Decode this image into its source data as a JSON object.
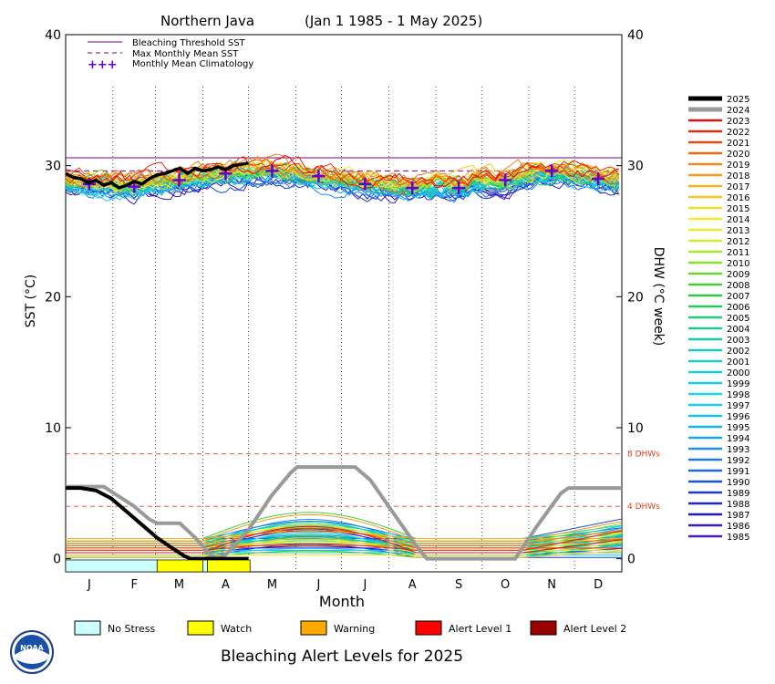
{
  "chart_data": {
    "type": "line",
    "title": "Northern Java",
    "date_range": "(Jan 1 1985 - 1 May 2025)",
    "xlabel": "Month",
    "ylabel_left": "SST (°C)",
    "ylabel_right": "DHW (°C week)",
    "ylim": [
      -1,
      40
    ],
    "yticks": [
      0,
      10,
      20,
      30,
      40
    ],
    "right_yticks": [
      0,
      10,
      20,
      30,
      40
    ],
    "months": [
      "J",
      "F",
      "M",
      "A",
      "M",
      "J",
      "J",
      "A",
      "S",
      "O",
      "N",
      "D"
    ],
    "grid": "dotted vertical month dividers",
    "legend_top": [
      {
        "label": "Bleaching Threshold SST",
        "style": "solid",
        "color": "#800080"
      },
      {
        "label": "Max Monthly Mean SST",
        "style": "dashed",
        "color": "#800080"
      },
      {
        "label": "Monthly Mean Climatology",
        "style": "plus",
        "color": "#6600cc"
      }
    ],
    "bleaching_threshold_sst": 30.6,
    "max_monthly_mean_sst": 29.6,
    "climatology": [
      28.6,
      28.4,
      28.9,
      29.4,
      29.6,
      29.2,
      28.6,
      28.3,
      28.3,
      28.9,
      29.6,
      29.0
    ],
    "dhw_reference_lines": [
      {
        "value": 8,
        "label": "8 DHWs",
        "color": "#e0401a"
      },
      {
        "value": 4,
        "label": "4 DHWs",
        "color": "#e0401a"
      }
    ],
    "series_2025_sst": [
      [
        0,
        29.4
      ],
      [
        5,
        29.1
      ],
      [
        10,
        29.0
      ],
      [
        15,
        28.7
      ],
      [
        20,
        28.9
      ],
      [
        25,
        28.5
      ],
      [
        30,
        28.7
      ],
      [
        35,
        28.3
      ],
      [
        40,
        28.5
      ],
      [
        45,
        28.8
      ],
      [
        50,
        28.6
      ],
      [
        55,
        29.0
      ],
      [
        60,
        29.3
      ],
      [
        65,
        29.4
      ],
      [
        70,
        29.6
      ],
      [
        75,
        29.8
      ],
      [
        80,
        29.4
      ],
      [
        85,
        29.8
      ],
      [
        90,
        29.6
      ],
      [
        95,
        29.7
      ],
      [
        100,
        29.9
      ],
      [
        105,
        29.7
      ],
      [
        110,
        30.0
      ],
      [
        115,
        30.1
      ],
      [
        120,
        30.2
      ]
    ],
    "series_2025_dhw": [
      [
        0,
        5.4
      ],
      [
        10,
        5.4
      ],
      [
        20,
        5.2
      ],
      [
        30,
        4.6
      ],
      [
        40,
        3.6
      ],
      [
        50,
        2.6
      ],
      [
        60,
        1.6
      ],
      [
        70,
        0.8
      ],
      [
        78,
        0.2
      ],
      [
        82,
        0
      ],
      [
        120,
        0
      ]
    ],
    "series_2024_dhw": [
      [
        0,
        5.5
      ],
      [
        25,
        5.5
      ],
      [
        45,
        4.0
      ],
      [
        55,
        3.0
      ],
      [
        60,
        2.7
      ],
      [
        75,
        2.7
      ],
      [
        85,
        1.6
      ],
      [
        95,
        0.3
      ],
      [
        100,
        0
      ],
      [
        105,
        0.3
      ],
      [
        120,
        2.2
      ],
      [
        135,
        4.8
      ],
      [
        148,
        6.6
      ],
      [
        152,
        7.0
      ],
      [
        190,
        7.0
      ],
      [
        200,
        6.0
      ],
      [
        215,
        3.5
      ],
      [
        230,
        1.0
      ],
      [
        237,
        0
      ],
      [
        290,
        0
      ],
      [
        295,
        0
      ],
      [
        310,
        2.6
      ],
      [
        325,
        5.0
      ],
      [
        330,
        5.4
      ],
      [
        365,
        5.4
      ]
    ],
    "years": [
      "2025",
      "2024",
      "2023",
      "2022",
      "2021",
      "2020",
      "2019",
      "2018",
      "2017",
      "2016",
      "2015",
      "2014",
      "2013",
      "2012",
      "2011",
      "2010",
      "2009",
      "2008",
      "2007",
      "2006",
      "2005",
      "2004",
      "2003",
      "2002",
      "2001",
      "2000",
      "1999",
      "1998",
      "1997",
      "1996",
      "1995",
      "1994",
      "1993",
      "1992",
      "1991",
      "1990",
      "1989",
      "1988",
      "1987",
      "1986",
      "1985"
    ],
    "year_colors": [
      "#000000",
      "#999999",
      "#dd1111",
      "#e52a10",
      "#ee4a10",
      "#f26a10",
      "#f5861a",
      "#f79a20",
      "#f7b020",
      "#f7c626",
      "#f7dc2a",
      "#f3ec2e",
      "#e4f02e",
      "#ccee2e",
      "#a8e82e",
      "#86e02e",
      "#66d82e",
      "#44d034",
      "#2ecc44",
      "#26cc60",
      "#20cc7c",
      "#1ccc94",
      "#18ccaa",
      "#18ccbc",
      "#18ccce",
      "#18ccdc",
      "#18d0e8",
      "#18d8ee",
      "#18d0f2",
      "#18c4f4",
      "#18b4f4",
      "#18a4f2",
      "#1890ee",
      "#1a7ce8",
      "#1a68e0",
      "#1a52d8",
      "#1a3cd0",
      "#1c28c8",
      "#2018c4",
      "#3818c4",
      "#5018c8"
    ],
    "alert_bar": [
      {
        "from": 0,
        "to": 60,
        "level": "No Stress"
      },
      {
        "from": 60,
        "to": 90,
        "level": "Watch"
      },
      {
        "from": 90,
        "to": 93,
        "level": "No Stress"
      },
      {
        "from": 93,
        "to": 121,
        "level": "Watch"
      }
    ]
  },
  "legend_bottom": {
    "items": [
      {
        "label": "No Stress",
        "color": "#ccffff"
      },
      {
        "label": "Watch",
        "color": "#ffff00"
      },
      {
        "label": "Warning",
        "color": "#ffaa00"
      },
      {
        "label": "Alert Level 1",
        "color": "#ff0000"
      },
      {
        "label": "Alert Level 2",
        "color": "#990000"
      }
    ]
  },
  "footer": {
    "caption": "Bleaching Alert Levels for 2025",
    "logo_text": "NOAA"
  }
}
